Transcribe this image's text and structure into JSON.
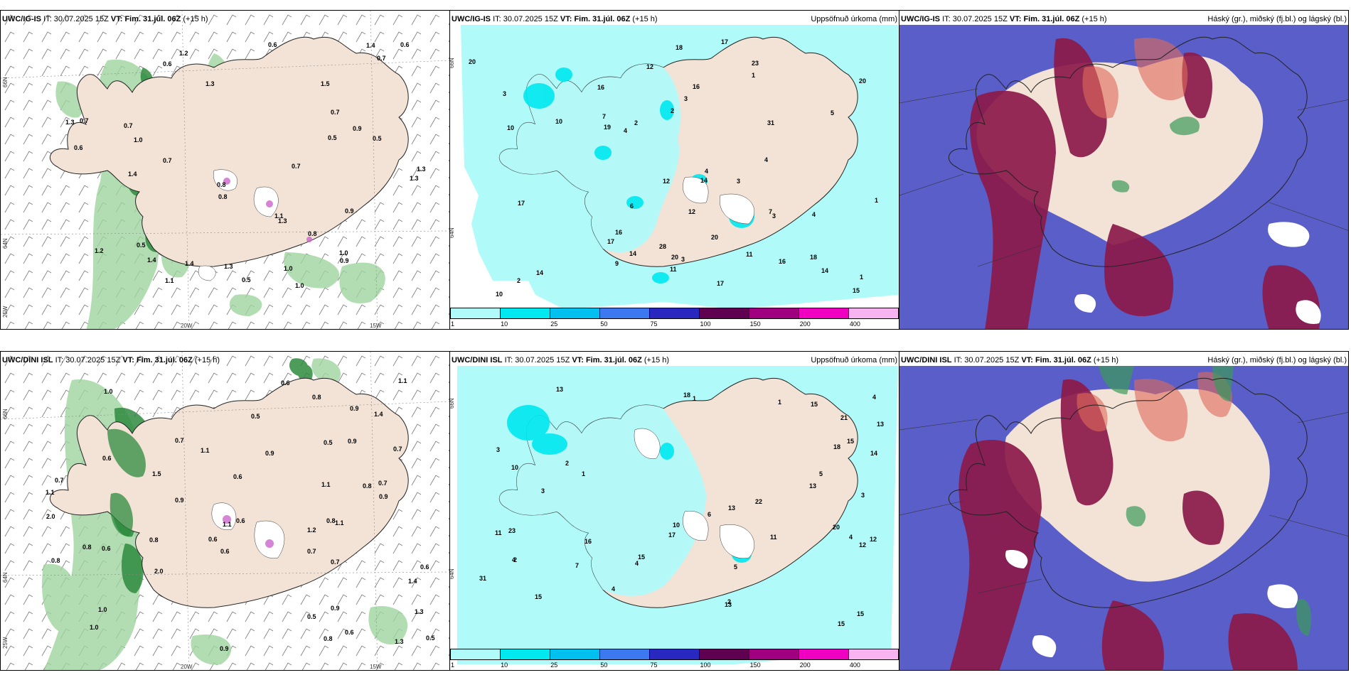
{
  "rows": [
    {
      "model": "UWC/IG-IS",
      "it_label": "IT:",
      "it_value": "30.07.2025 15Z",
      "vt_label": "VT:",
      "vt_value": "Fim. 31.júl. 06Z",
      "lead": "(+15 h)"
    },
    {
      "model": "UWC/DINI ISL",
      "it_label": "IT:",
      "it_value": "30.07.2025 15Z",
      "vt_label": "VT:",
      "vt_value": "Fim. 31.júl. 06Z",
      "lead": "(+15 h)"
    }
  ],
  "precip_title": "Uppsöfnuð úrkoma (mm)",
  "cloud_title": "Háský (gr.), miðský (fj.bl.) og lágský (bl.)",
  "colorbar": {
    "colors": [
      "#b0fafa",
      "#00e8f0",
      "#00c0f0",
      "#3c78f0",
      "#2828c0",
      "#600050",
      "#a00080",
      "#f000c0",
      "#f8b4f0"
    ],
    "labels": [
      "1",
      "10",
      "25",
      "50",
      "75",
      "100",
      "150",
      "200",
      "400"
    ]
  },
  "coords": {
    "top": {
      "lat66": "66N",
      "lat64": "64N",
      "lat_side": "25W",
      "lon20": "20W",
      "lon15": "15W"
    },
    "bottom": {
      "lat66": "66N",
      "lat64": "64N",
      "lat_side": "25W",
      "lon20": "20W",
      "lon15": "15W"
    }
  },
  "top_left_values": [
    "1.0",
    "0.6",
    "0.5",
    "0.7",
    "0.9",
    "1.0",
    "1.3",
    "0.7",
    "0.8",
    "1.4",
    "1.2",
    "1.3",
    "0.8",
    "1.1",
    "0.5",
    "1.4",
    "0.6",
    "0.7",
    "0.9",
    "0.5",
    "1.0",
    "1.3",
    "1.1",
    "0.9",
    "0.7",
    "0.7",
    "1.4",
    "1.0",
    "0.5",
    "1.3",
    "0.8",
    "0.6",
    "1.5",
    "1.4",
    "1.2",
    "1.3",
    "0.6",
    "0.7",
    "1.3"
  ],
  "top_mid_values": [
    "2",
    "4",
    "4",
    "12",
    "12",
    "17",
    "18",
    "23",
    "16",
    "17",
    "15",
    "19",
    "14",
    "18",
    "11",
    "7",
    "7",
    "17",
    "12",
    "20",
    "20",
    "14",
    "11",
    "3",
    "3",
    "1",
    "2",
    "3",
    "5",
    "20",
    "14",
    "6",
    "16",
    "10",
    "14",
    "17",
    "20",
    "31",
    "10",
    "28",
    "10",
    "16",
    "16",
    "9",
    "4",
    "4",
    "2",
    "3",
    "1",
    "1",
    "3"
  ],
  "bottom_left_values": [
    "0.7",
    "0.6",
    "0.8",
    "1.4",
    "0.5",
    "0.9",
    "0.7",
    "0.6",
    "1.3",
    "0.6",
    "0.8",
    "1.2",
    "0.8",
    "0.7",
    "2.0",
    "1.3",
    "1.4",
    "0.8",
    "0.9",
    "1.1",
    "0.6",
    "2.0",
    "1.1",
    "0.8",
    "0.9",
    "1.0",
    "0.6",
    "0.5",
    "0.5",
    "0.6",
    "0.7",
    "0.6",
    "0.7",
    "0.9",
    "0.9",
    "1.0",
    "0.9",
    "0.6",
    "1.1",
    "0.8",
    "0.6",
    "0.8",
    "0.5",
    "0.9",
    "1.1",
    "0.7",
    "1.1",
    "1.5",
    "1.1",
    "1.0"
  ],
  "bottom_mid_values": [
    "2",
    "2",
    "3",
    "4",
    "4",
    "3",
    "15",
    "16",
    "15",
    "13",
    "18",
    "31",
    "13",
    "14",
    "20",
    "17",
    "12",
    "11",
    "4",
    "5",
    "21",
    "15",
    "15",
    "11",
    "13",
    "6",
    "18",
    "15",
    "23",
    "22",
    "12",
    "13",
    "10",
    "15",
    "10",
    "13",
    "5",
    "7",
    "4",
    "4",
    "2",
    "3",
    "1",
    "1",
    "1"
  ]
}
